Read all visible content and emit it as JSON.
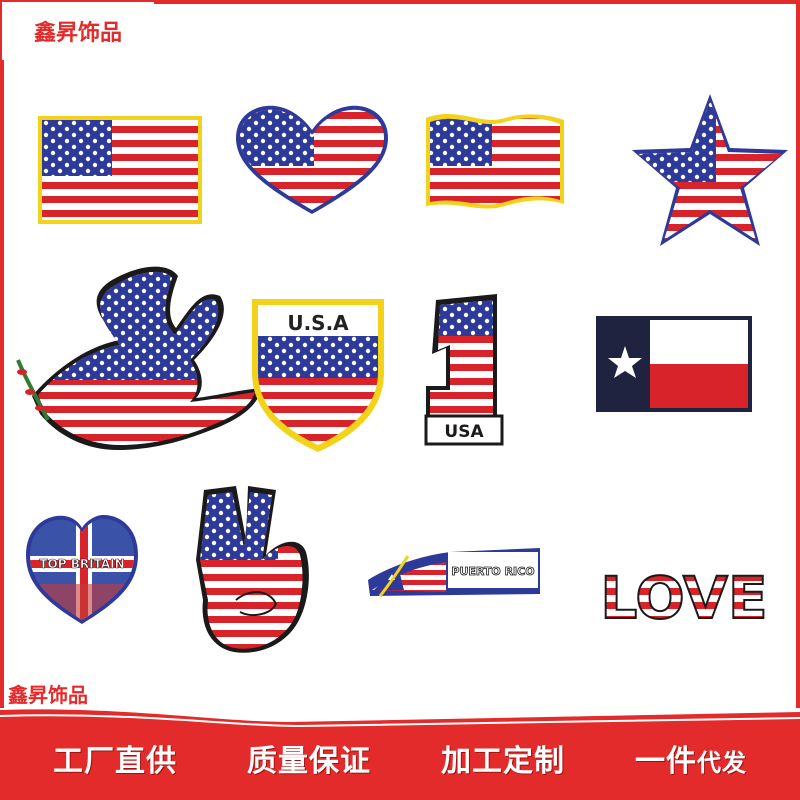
{
  "brand": {
    "top_label": "鑫昇饰品",
    "bottom_label": "鑫昇饰品"
  },
  "colors": {
    "accent_red": "#e32b2b",
    "flag_blue": "#2d3a9a",
    "flag_red": "#d8232a",
    "gold_border": "#f2d21a",
    "texas_navy": "#1f2340"
  },
  "patches": {
    "shield_label": "U.S.A",
    "number_label": "1",
    "number_sub_label": "USA",
    "heart_label": "TOP BRITAIN",
    "puerto_rico_label": "PUERTO RICO",
    "love_label": "LOVE"
  },
  "banner": {
    "slogans": [
      "工厂直供",
      "质量保证",
      "加工定制",
      "一件代发"
    ],
    "last_slogan_main": "一件",
    "last_slogan_small": "代发"
  }
}
